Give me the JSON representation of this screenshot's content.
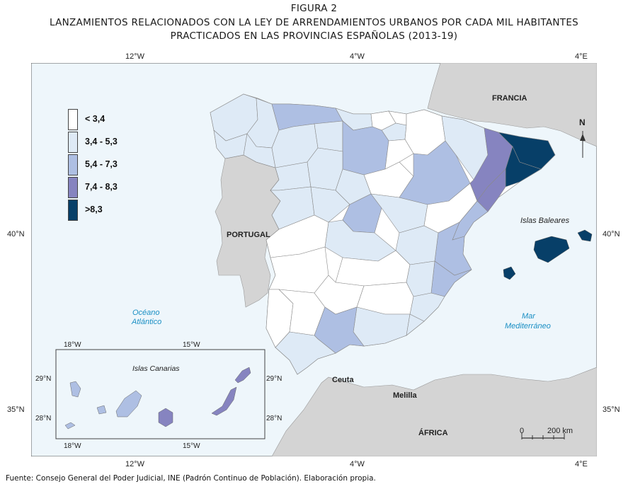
{
  "figure": {
    "label": "FIGURA 2",
    "title_line1": "LANZAMIENTOS RELACIONADOS CON LA LEY DE ARRENDAMIENTOS URBANOS POR CADA MIL HABITANTES",
    "title_line2": "PRACTICADOS EN LAS PROVINCIAS ESPAÑOLAS (2013-19)"
  },
  "axes": {
    "top": [
      "12°W",
      "4°W",
      "4°E"
    ],
    "bottom": [
      "12°W",
      "4°W",
      "4°E"
    ],
    "left": [
      "40°N",
      "35°N"
    ],
    "right": [
      "40°N",
      "35°N"
    ]
  },
  "legend": [
    {
      "label": "< 3,4",
      "color": "#ffffff"
    },
    {
      "label": "3,4 - 5,3",
      "color": "#deeaf6"
    },
    {
      "label": "5,4 - 7,3",
      "color": "#aebfe3"
    },
    {
      "label": "7,4 - 8,3",
      "color": "#8684c0"
    },
    {
      "label": ">8,3",
      "color": "#073f68"
    }
  ],
  "map_labels": {
    "francia": "FRANCIA",
    "portugal": "PORTUGAL",
    "ocean": [
      "Océano",
      "Atlántico"
    ],
    "sea": [
      "Mar",
      "Mediterráneo"
    ],
    "baleares": "Islas Baleares",
    "ceuta": "Ceuta",
    "melilla": "Melilla",
    "africa": "ÁFRICA",
    "north": "N"
  },
  "scale": {
    "zero": "0",
    "distance": "200 km"
  },
  "inset": {
    "title": "Islas Canarias",
    "top": [
      "18°W",
      "15°W"
    ],
    "bottom": [
      "18°W",
      "15°W"
    ],
    "left": [
      "29°N",
      "28°N"
    ],
    "right": [
      "29°N",
      "28°N"
    ]
  },
  "colors": {
    "sea": "#eef6fb",
    "land_other": "#d4d4d4",
    "labels_water": "#1a8fc4",
    "border": "#888888"
  },
  "source": "Fuente: Consejo General del Poder Judicial, INE (Padrón Continuo de Población). Elaboración propia."
}
